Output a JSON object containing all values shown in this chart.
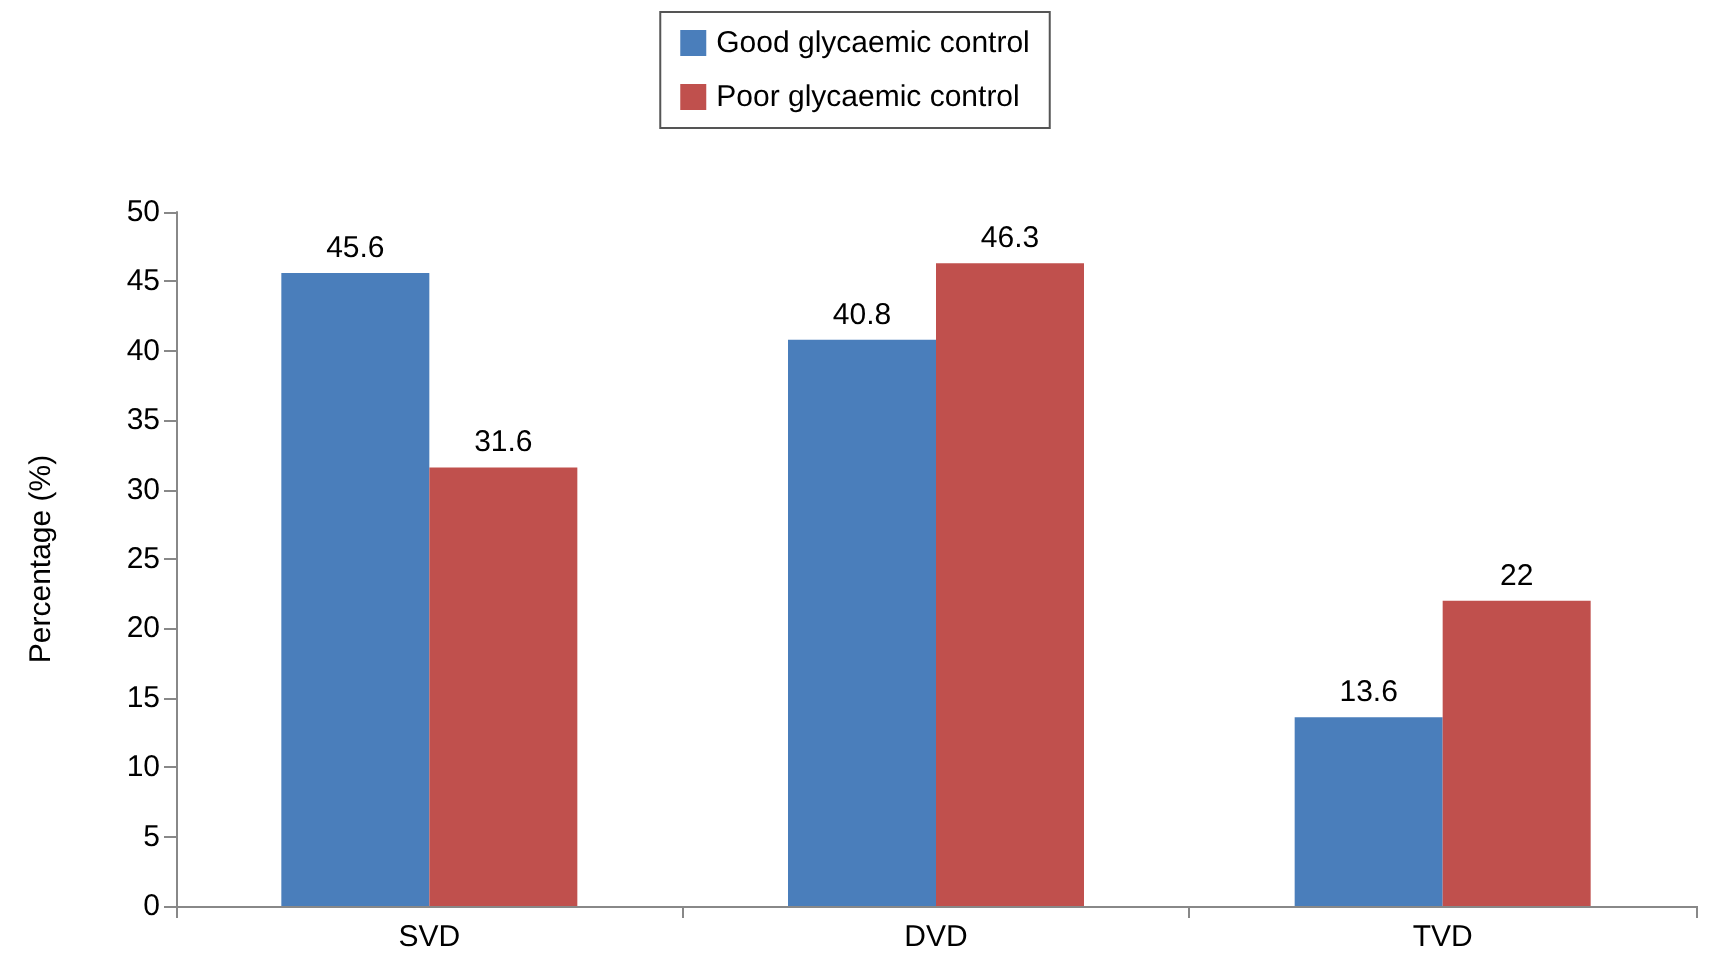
{
  "chart_data": {
    "type": "bar",
    "categories": [
      "SVD",
      "DVD",
      "TVD"
    ],
    "series": [
      {
        "name": "Good glycaemic control",
        "color": "#4a7ebb",
        "values": [
          45.6,
          40.8,
          13.6
        ]
      },
      {
        "name": "Poor glycaemic control",
        "color": "#c0504d",
        "values": [
          31.6,
          46.3,
          22
        ]
      }
    ],
    "ylabel": "Percentage (%)",
    "ylim": [
      0,
      50
    ],
    "yticks": [
      0,
      5,
      10,
      15,
      20,
      25,
      30,
      35,
      40,
      45,
      50
    ],
    "grid": false,
    "legend": "top",
    "data_labels": true
  }
}
